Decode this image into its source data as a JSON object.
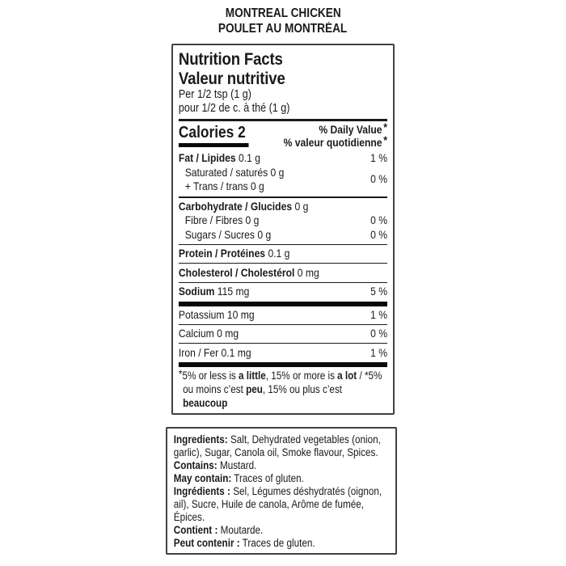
{
  "colors": {
    "background": "#ffffff",
    "text": "#1a1a1a",
    "rule": "#1a1a1a",
    "thick_bar": "#0a0a0a",
    "box_border": "#414141"
  },
  "product": {
    "line1": "MONTREAL CHICKEN",
    "line2": "POULET AU MONTRÉAL"
  },
  "nft": {
    "title_en": "Nutrition Facts",
    "title_fr": "Valeur nutritive",
    "serving_en": "Per 1/2 tsp (1 g)",
    "serving_fr": "pour 1/2 de c. à thé (1 g)",
    "calories": "Calories 2",
    "dv_en": "% Daily Value",
    "dv_fr": "% valeur quotidienne",
    "dv_star": "*",
    "rows": {
      "fat": {
        "name": "Fat / Lipides",
        "amount": "0.1 g",
        "dv": "1 %"
      },
      "saturated": {
        "name": "Saturated / saturés",
        "amount": "0 g"
      },
      "trans": {
        "name": "+ Trans / trans",
        "amount": "0 g"
      },
      "sat_trans_dv": "0 %",
      "carbohydrate": {
        "name": "Carbohydrate / Glucides",
        "amount": "0 g"
      },
      "fibre": {
        "name": "Fibre / Fibres",
        "amount": "0 g",
        "dv": "0 %"
      },
      "sugars": {
        "name": "Sugars / Sucres",
        "amount": "0 g",
        "dv": "0 %"
      },
      "protein": {
        "name": "Protein / Protéines",
        "amount": "0.1 g"
      },
      "cholesterol": {
        "name": "Cholesterol / Cholestérol",
        "amount": "0 mg"
      },
      "sodium": {
        "name": "Sodium",
        "amount": "115 mg",
        "dv": "5 %"
      },
      "potassium": {
        "name": "Potassium",
        "amount": "10 mg",
        "dv": "1 %"
      },
      "calcium": {
        "name": "Calcium",
        "amount": "0 mg",
        "dv": "0 %"
      },
      "iron": {
        "name": "Iron / Fer",
        "amount": "0.1 mg",
        "dv": "1 %"
      }
    },
    "footnote": {
      "star": "*",
      "segments": [
        {
          "text": "5% or less is "
        },
        {
          "text": "a little",
          "bold": true
        },
        {
          "text": ", 15% or more is "
        },
        {
          "text": "a lot",
          "bold": true
        },
        {
          "text": " / *5% ou moins c’est "
        },
        {
          "text": "peu",
          "bold": true
        },
        {
          "text": ", 15% ou plus c’est "
        },
        {
          "text": "beaucoup",
          "bold": true
        }
      ]
    }
  },
  "ingredients": {
    "entries": [
      {
        "label": "Ingredients:",
        "text": " Salt, Dehydrated vegetables (onion, garlic), Sugar, Canola oil, Smoke flavour, Spices."
      },
      {
        "label": "Contains:",
        "text": " Mustard."
      },
      {
        "label": "May contain:",
        "text": " Traces of gluten."
      },
      {
        "label": "Ingrédients :",
        "text": " Sel, Légumes déshydratés (oignon, ail), Sucre, Huile de canola, Arôme de fumée, Épices."
      },
      {
        "label": "Contient :",
        "text": " Moutarde."
      },
      {
        "label": "Peut contenir :",
        "text": " Traces de gluten."
      }
    ]
  }
}
